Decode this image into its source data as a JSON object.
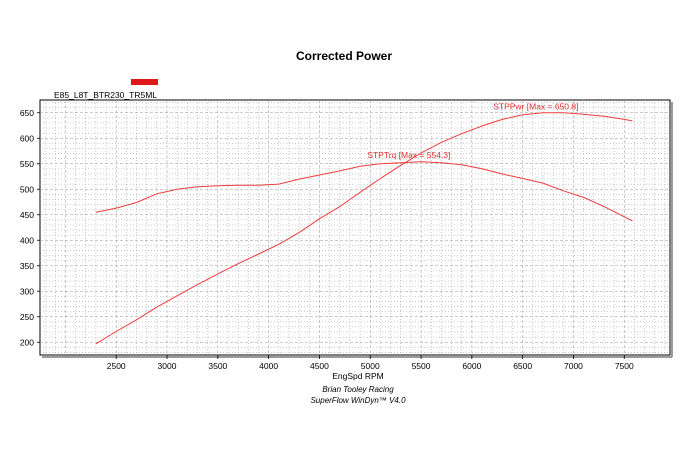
{
  "chart_data": {
    "type": "line",
    "title": "Corrected Power",
    "legend": {
      "label": "E85_L8T_BTR230_TR5ML",
      "color": "#e01818"
    },
    "xlabel": "EngSpd RPM",
    "ylabel": "",
    "credits": [
      "Brian Tooley Racing",
      "SuperFlow WinDyn™  V4.0"
    ],
    "xlim": [
      1750,
      7950
    ],
    "ylim": [
      175,
      675
    ],
    "xticks": [
      2500,
      3000,
      3500,
      4000,
      4500,
      5000,
      5500,
      6000,
      6500,
      7000,
      7500
    ],
    "yticks": [
      200,
      250,
      300,
      350,
      400,
      450,
      500,
      550,
      600,
      650
    ],
    "grid": true,
    "line_color": "#f03c3c",
    "series": [
      {
        "name": "STPPwr",
        "annotation": "STPPwr [Max = 650.8]",
        "x": [
          2300,
          2500,
          2700,
          2900,
          3100,
          3300,
          3500,
          3700,
          3900,
          4100,
          4300,
          4500,
          4700,
          4900,
          5100,
          5300,
          5500,
          5700,
          5900,
          6100,
          6300,
          6500,
          6700,
          6900,
          7100,
          7300,
          7500,
          7580
        ],
        "values": [
          197,
          221,
          244,
          269,
          291,
          313,
          334,
          354,
          373,
          392,
          415,
          442,
          466,
          494,
          521,
          547,
          571,
          592,
          609,
          624,
          637,
          646,
          650,
          650,
          647,
          643,
          637,
          634
        ]
      },
      {
        "name": "STPTrq",
        "annotation": "STPTrq [Max = 554.3]",
        "x": [
          2300,
          2500,
          2700,
          2900,
          3100,
          3300,
          3500,
          3700,
          3900,
          4100,
          4300,
          4500,
          4700,
          4900,
          5100,
          5300,
          5500,
          5700,
          5900,
          6100,
          6300,
          6500,
          6700,
          6900,
          7100,
          7300,
          7500,
          7580
        ],
        "values": [
          455,
          463,
          474,
          491,
          500,
          505,
          507,
          508,
          508,
          510,
          520,
          528,
          536,
          545,
          550,
          552,
          554,
          552,
          548,
          540,
          530,
          521,
          512,
          497,
          484,
          466,
          446,
          438
        ]
      }
    ]
  }
}
